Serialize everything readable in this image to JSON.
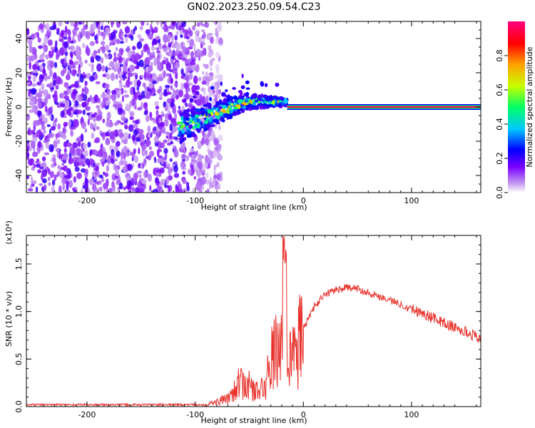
{
  "title": "GN02.2023.250.09.54.C23",
  "chart_data": [
    {
      "type": "heatmap",
      "xlabel": "Height of straight line (km)",
      "ylabel": "Frequency (Hz)",
      "xlim": [
        -256,
        164
      ],
      "ylim": [
        -50,
        50
      ],
      "xticks": [
        -200,
        -100,
        0,
        100
      ],
      "yticks": [
        -40,
        -20,
        0,
        20,
        40
      ],
      "colorbar": {
        "label": "Normalized spectral amplitude",
        "range": [
          0,
          1
        ],
        "ticks": [
          0.0,
          0.2,
          0.4,
          0.6,
          0.8
        ],
        "colors": [
          "#ffffff",
          "#c8a0f0",
          "#7a00ff",
          "#0000ff",
          "#00c8ff",
          "#00ff64",
          "#c8ff00",
          "#ffa000",
          "#ff0000",
          "#ff0080"
        ]
      },
      "regions": {
        "noise_band": {
          "x": [
            -256,
            -88
          ],
          "amplitude": 0.15
        },
        "transition_cluster": {
          "x": [
            -115,
            -15
          ],
          "freq_start": -12,
          "freq_end": 3,
          "amplitude": 0.55
        },
        "carrier_line": {
          "x": [
            -15,
            164
          ],
          "freq": 0,
          "amplitude": 0.95
        }
      }
    },
    {
      "type": "line",
      "xlabel": "Height of straight line (km)",
      "ylabel": "SNR (10 * v/v)",
      "y_multiplier": "(x10⁴)",
      "xlim": [
        -256,
        164
      ],
      "ylim": [
        0,
        1.8
      ],
      "xticks": [
        -200,
        -100,
        0,
        100
      ],
      "yticks": [
        0.0,
        0.5,
        1.0,
        1.5
      ],
      "color": "#e8302a",
      "envelope": {
        "x": [
          -256,
          -90,
          -70,
          -62,
          -55,
          -48,
          -42,
          -35,
          -28,
          -22,
          -18,
          -15,
          -12,
          -8,
          0,
          10,
          20,
          30,
          40,
          50,
          60,
          70,
          80,
          100,
          120,
          140,
          164
        ],
        "y": [
          0.02,
          0.02,
          0.08,
          0.22,
          0.25,
          0.2,
          0.15,
          0.22,
          0.55,
          0.6,
          1.15,
          0.7,
          0.55,
          0.5,
          0.82,
          1.05,
          1.18,
          1.23,
          1.25,
          1.24,
          1.2,
          1.16,
          1.12,
          1.03,
          0.93,
          0.83,
          0.72
        ]
      },
      "peak": {
        "x": -17,
        "y": 1.82
      }
    }
  ]
}
